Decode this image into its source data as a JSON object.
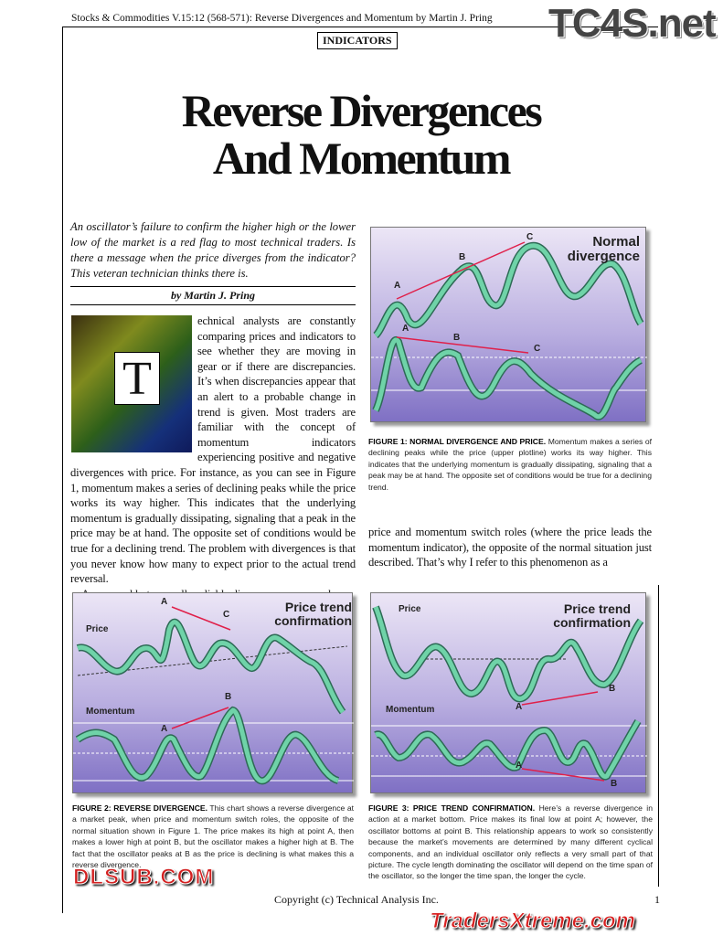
{
  "header": {
    "running_head": "Stocks & Commodities V.15:12 (568-571): Reverse Divergences and Momentum by Martin J. Pring",
    "section": "INDICATORS"
  },
  "article": {
    "title_line1": "Reverse Divergences",
    "title_line2": "And Momentum",
    "deck": "An oscillator’s failure to confirm the higher high or the lower low of the market is a red flag to most technical traders. Is there a message when the price diverges from the indicator? This veteran technician thinks there is.",
    "byline": "by Martin J. Pring",
    "drop_cap": "T",
    "para1_a": "echnical analysts are constantly comparing prices and indicators to see whether they are moving in gear or if there are discrepancies. It’s when discrepancies appear that an alert to a probable change in trend is given. Most traders are familiar with the concept of momentum indicators experiencing positive and negative divergences",
    "para1_b": "with price. For instance, as you can see in Figure 1, momentum makes a series of declining peaks while the price works its way higher. This indicates that the underlying momentum is gradually dissipating, signaling that a peak in the price may be at hand. The opposite set of conditions would be true for a declining trend. The problem with divergences is that you never know how many to expect prior to the actual trend reversal.",
    "para2": "An unusual but normally reliable discrepancy occurs when",
    "right_col": "price and momentum switch roles (where the price leads the momentum indicator), the opposite of the normal situation just described. That’s why I refer to this phenomenon as a"
  },
  "figures": [
    {
      "title": "Normal divergence",
      "points": [
        "A",
        "B",
        "C",
        "A",
        "B",
        "C"
      ],
      "caption_head": "FIGURE 1: NORMAL DIVERGENCE AND PRICE.",
      "caption": "Momentum makes a series of declining peaks while the price (upper plotline) works its way higher. This indicates that the underlying momentum is gradually dissipating, signaling that a peak may be at hand. The opposite set of conditions would be true for a declining trend."
    },
    {
      "title": "Price trend confirmation",
      "price_label": "Price",
      "momentum_label": "Momentum",
      "points": [
        "A",
        "C",
        "B",
        "A"
      ],
      "caption_head": "FIGURE 2: REVERSE DIVERGENCE.",
      "caption": "This chart shows a reverse divergence at a market peak, when price and momentum switch roles, the opposite of the normal situation shown in Figure 1. The price makes its high at point A, then makes a lower high at point B, but the oscillator makes a higher high at B. The fact that the oscillator peaks at B as the price is declining is what makes this a reverse divergence."
    },
    {
      "title": "Price trend confirmation",
      "price_label": "Price",
      "momentum_label": "Momentum",
      "points": [
        "A",
        "B",
        "A",
        "B"
      ],
      "caption_head": "FIGURE 3: PRICE TREND CONFIRMATION.",
      "caption": "Here’s a reverse divergence in action at a market bottom. Price makes its final low at point A; however, the oscillator bottoms at point B. This relationship appears to work so consistently because the market’s movements are determined by many different cyclical components, and an individual oscillator only reflects a very small part of that picture. The cycle length dominating the oscillator will depend on the time span of the oscillator, so the longer the time span, the longer the cycle."
    }
  ],
  "footer": {
    "copyright": "Copyright (c) Technical Analysis Inc.",
    "page": "1"
  },
  "watermarks": {
    "top": "TC4S.net",
    "middle": "DLSUB.COM",
    "bottom": "TradersXtreme.com"
  },
  "colors": {
    "curve": "#6fd3a8",
    "arrow": "#e0204a",
    "figure_top": "#ece6f6",
    "figure_bottom": "#7f70c4"
  }
}
